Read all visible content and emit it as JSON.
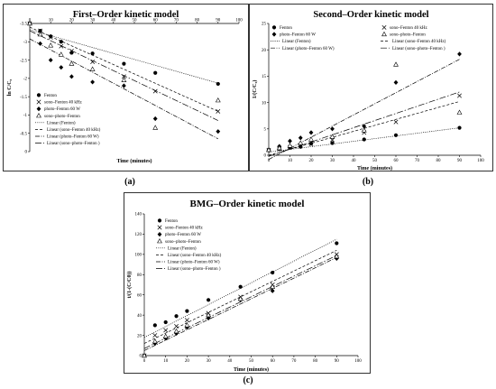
{
  "figure": {
    "captions": [
      "(a)",
      "(b)",
      "(c)"
    ]
  },
  "chart_data": [
    {
      "type": "scatter",
      "title": "First–Order kinetic model",
      "xlabel": "Time (minutes)",
      "ylabel": "ln C/C₀",
      "xlim": [
        0,
        100
      ],
      "ylim": [
        -3.5,
        0
      ],
      "x_ticks": [
        "0",
        "10",
        "20",
        "30",
        "40",
        "50",
        "60",
        "70",
        "80",
        "90",
        "100"
      ],
      "y_ticks": [
        "0",
        "-0.5",
        "-1",
        "-1.5",
        "-2",
        "-2.5",
        "-3",
        "-3.5"
      ],
      "grid": false,
      "legend_position": "lower-left",
      "series": [
        {
          "name": "Fenton",
          "marker": "circle",
          "x": [
            0,
            5,
            10,
            15,
            20,
            30,
            45,
            60,
            90
          ],
          "y": [
            0,
            -0.2,
            -0.35,
            -0.5,
            -0.8,
            -0.82,
            -1.1,
            -1.35,
            -1.65
          ]
        },
        {
          "name": "sono–Fenton 40 kHz",
          "marker": "x",
          "x": [
            0,
            5,
            10,
            15,
            20,
            30,
            45,
            60,
            90
          ],
          "y": [
            0,
            -0.2,
            -0.38,
            -0.62,
            -0.75,
            -1.05,
            -1.45,
            -1.85,
            -2.4
          ]
        },
        {
          "name": "photo–Fenton 60 W",
          "marker": "diamond",
          "x": [
            0,
            5,
            10,
            15,
            20,
            30,
            45,
            60,
            90
          ],
          "y": [
            0,
            -0.55,
            -1.0,
            -1.2,
            -1.45,
            -1.6,
            -1.7,
            -2.6,
            -2.95
          ]
        },
        {
          "name": "sono–photo–Fenton",
          "marker": "triangle",
          "x": [
            0,
            5,
            10,
            15,
            20,
            30,
            45,
            60,
            90
          ],
          "y": [
            0,
            -0.3,
            -0.6,
            -0.85,
            -1.1,
            -1.25,
            -1.55,
            -2.85,
            -2.1
          ]
        }
      ],
      "trendlines": [
        {
          "name": "Linear (Fenton)",
          "style": "dotted",
          "x": [
            0,
            90
          ],
          "y": [
            -0.17,
            -1.63
          ]
        },
        {
          "name": "Linear (sono–Fenton 40 kHz)",
          "style": "dashed",
          "x": [
            0,
            90
          ],
          "y": [
            -0.1,
            -2.4
          ]
        },
        {
          "name": "Linear (photo–Fenton 60 W)",
          "style": "dashdot",
          "x": [
            0,
            90
          ],
          "y": [
            -0.42,
            -3.15
          ]
        },
        {
          "name": "Linear (sono–photo–Fenton )",
          "style": "longdash",
          "x": [
            0,
            90
          ],
          "y": [
            -0.2,
            -2.65
          ]
        }
      ]
    },
    {
      "type": "scatter",
      "title": "Second–Order kinetic model",
      "xlabel": "Time (minutes)",
      "ylabel": "1/(C/C₀)",
      "xlim": [
        0,
        100
      ],
      "ylim": [
        0,
        25
      ],
      "x_ticks": [
        "0",
        "10",
        "20",
        "30",
        "40",
        "50",
        "60",
        "70",
        "80",
        "90",
        "100"
      ],
      "y_ticks": [
        "0",
        "5",
        "10",
        "15",
        "20",
        "25"
      ],
      "grid": false,
      "legend_position": "top",
      "series": [
        {
          "name": "Fenton",
          "marker": "circle",
          "x": [
            0,
            5,
            10,
            15,
            20,
            30,
            45,
            60,
            90
          ],
          "y": [
            1,
            1.2,
            1.4,
            1.6,
            2.2,
            2.3,
            3,
            3.8,
            5.2
          ]
        },
        {
          "name": "sono–Fenton 40 kHz",
          "marker": "x",
          "x": [
            0,
            5,
            10,
            15,
            20,
            30,
            45,
            60,
            90
          ],
          "y": [
            1,
            1.2,
            1.5,
            1.9,
            2.1,
            2.9,
            4.3,
            6.3,
            11.3
          ]
        },
        {
          "name": "photo–Fenton 60 W",
          "marker": "diamond",
          "x": [
            0,
            5,
            10,
            15,
            20,
            30,
            45,
            60,
            90
          ],
          "y": [
            1,
            1.7,
            2.7,
            3.3,
            4.3,
            5,
            5.5,
            13.8,
            19.2
          ]
        },
        {
          "name": "sono–photo–Fenton",
          "marker": "triangle",
          "x": [
            0,
            5,
            10,
            15,
            20,
            30,
            45,
            60,
            90
          ],
          "y": [
            1,
            1.35,
            1.8,
            2.3,
            3,
            3.5,
            4.7,
            17.2,
            8.1
          ]
        }
      ],
      "trendlines": [
        {
          "name": "Linear (Fenton)",
          "style": "dotted",
          "x": [
            0,
            90
          ],
          "y": [
            0.6,
            5.2
          ]
        },
        {
          "name": "Linear (sono–Fenton 40 kHz)",
          "style": "dashed",
          "x": [
            0,
            90
          ],
          "y": [
            0,
            10.2
          ]
        },
        {
          "name": "Linear (photo–Fenton 60 W)",
          "style": "dashdot",
          "x": [
            0,
            90
          ],
          "y": [
            -0.8,
            18.2
          ]
        },
        {
          "name": "Linear (sono–photo–Fenton )",
          "style": "longdash",
          "x": [
            0,
            90
          ],
          "y": [
            -0.2,
            12
          ]
        }
      ]
    },
    {
      "type": "scatter",
      "title": "BMG–Order kinetic model",
      "xlabel": "Time (minutes)",
      "ylabel": "t/(1-(C/C0))",
      "xlim": [
        0,
        100
      ],
      "ylim": [
        0,
        140
      ],
      "x_ticks": [
        "0",
        "10",
        "20",
        "30",
        "40",
        "50",
        "60",
        "70",
        "80",
        "90",
        "100"
      ],
      "y_ticks": [
        "0",
        "20",
        "40",
        "60",
        "80",
        "100",
        "120",
        "140"
      ],
      "grid": false,
      "legend_position": "top-left",
      "series": [
        {
          "name": "Fenton",
          "marker": "circle",
          "x": [
            0,
            5,
            10,
            15,
            20,
            30,
            45,
            60,
            90
          ],
          "y": [
            0,
            30,
            33,
            39,
            44,
            55,
            68,
            82,
            111
          ]
        },
        {
          "name": "sono–Fenton 40 kHz",
          "marker": "x",
          "x": [
            0,
            5,
            10,
            15,
            20,
            30,
            45,
            60,
            90
          ],
          "y": [
            0,
            20,
            25,
            29,
            35,
            42,
            58,
            70,
            100
          ]
        },
        {
          "name": "photo–Fenton 60 W",
          "marker": "diamond",
          "x": [
            0,
            5,
            10,
            15,
            20,
            30,
            45,
            60,
            90
          ],
          "y": [
            0,
            12,
            17,
            22,
            28,
            37,
            55,
            64,
            96
          ]
        },
        {
          "name": "sono–photo–Fenton",
          "marker": "triangle",
          "x": [
            0,
            5,
            10,
            15,
            20,
            30,
            45,
            60,
            90
          ],
          "y": [
            0,
            14,
            19,
            24,
            30,
            40,
            56,
            68,
            98
          ]
        }
      ],
      "trendlines": [
        {
          "name": "Linear (Fenton)",
          "style": "dotted",
          "x": [
            0,
            90
          ],
          "y": [
            18,
            115
          ]
        },
        {
          "name": "Linear (sono–Fenton 40 kHz)",
          "style": "dashed",
          "x": [
            0,
            90
          ],
          "y": [
            12,
            104
          ]
        },
        {
          "name": "Linear (photo–Fenton 60 W)",
          "style": "dashdot",
          "x": [
            0,
            90
          ],
          "y": [
            5,
            97
          ]
        },
        {
          "name": "Linear (sono–photo–Fenton )",
          "style": "longdash",
          "x": [
            0,
            90
          ],
          "y": [
            7,
            99
          ]
        }
      ]
    }
  ]
}
